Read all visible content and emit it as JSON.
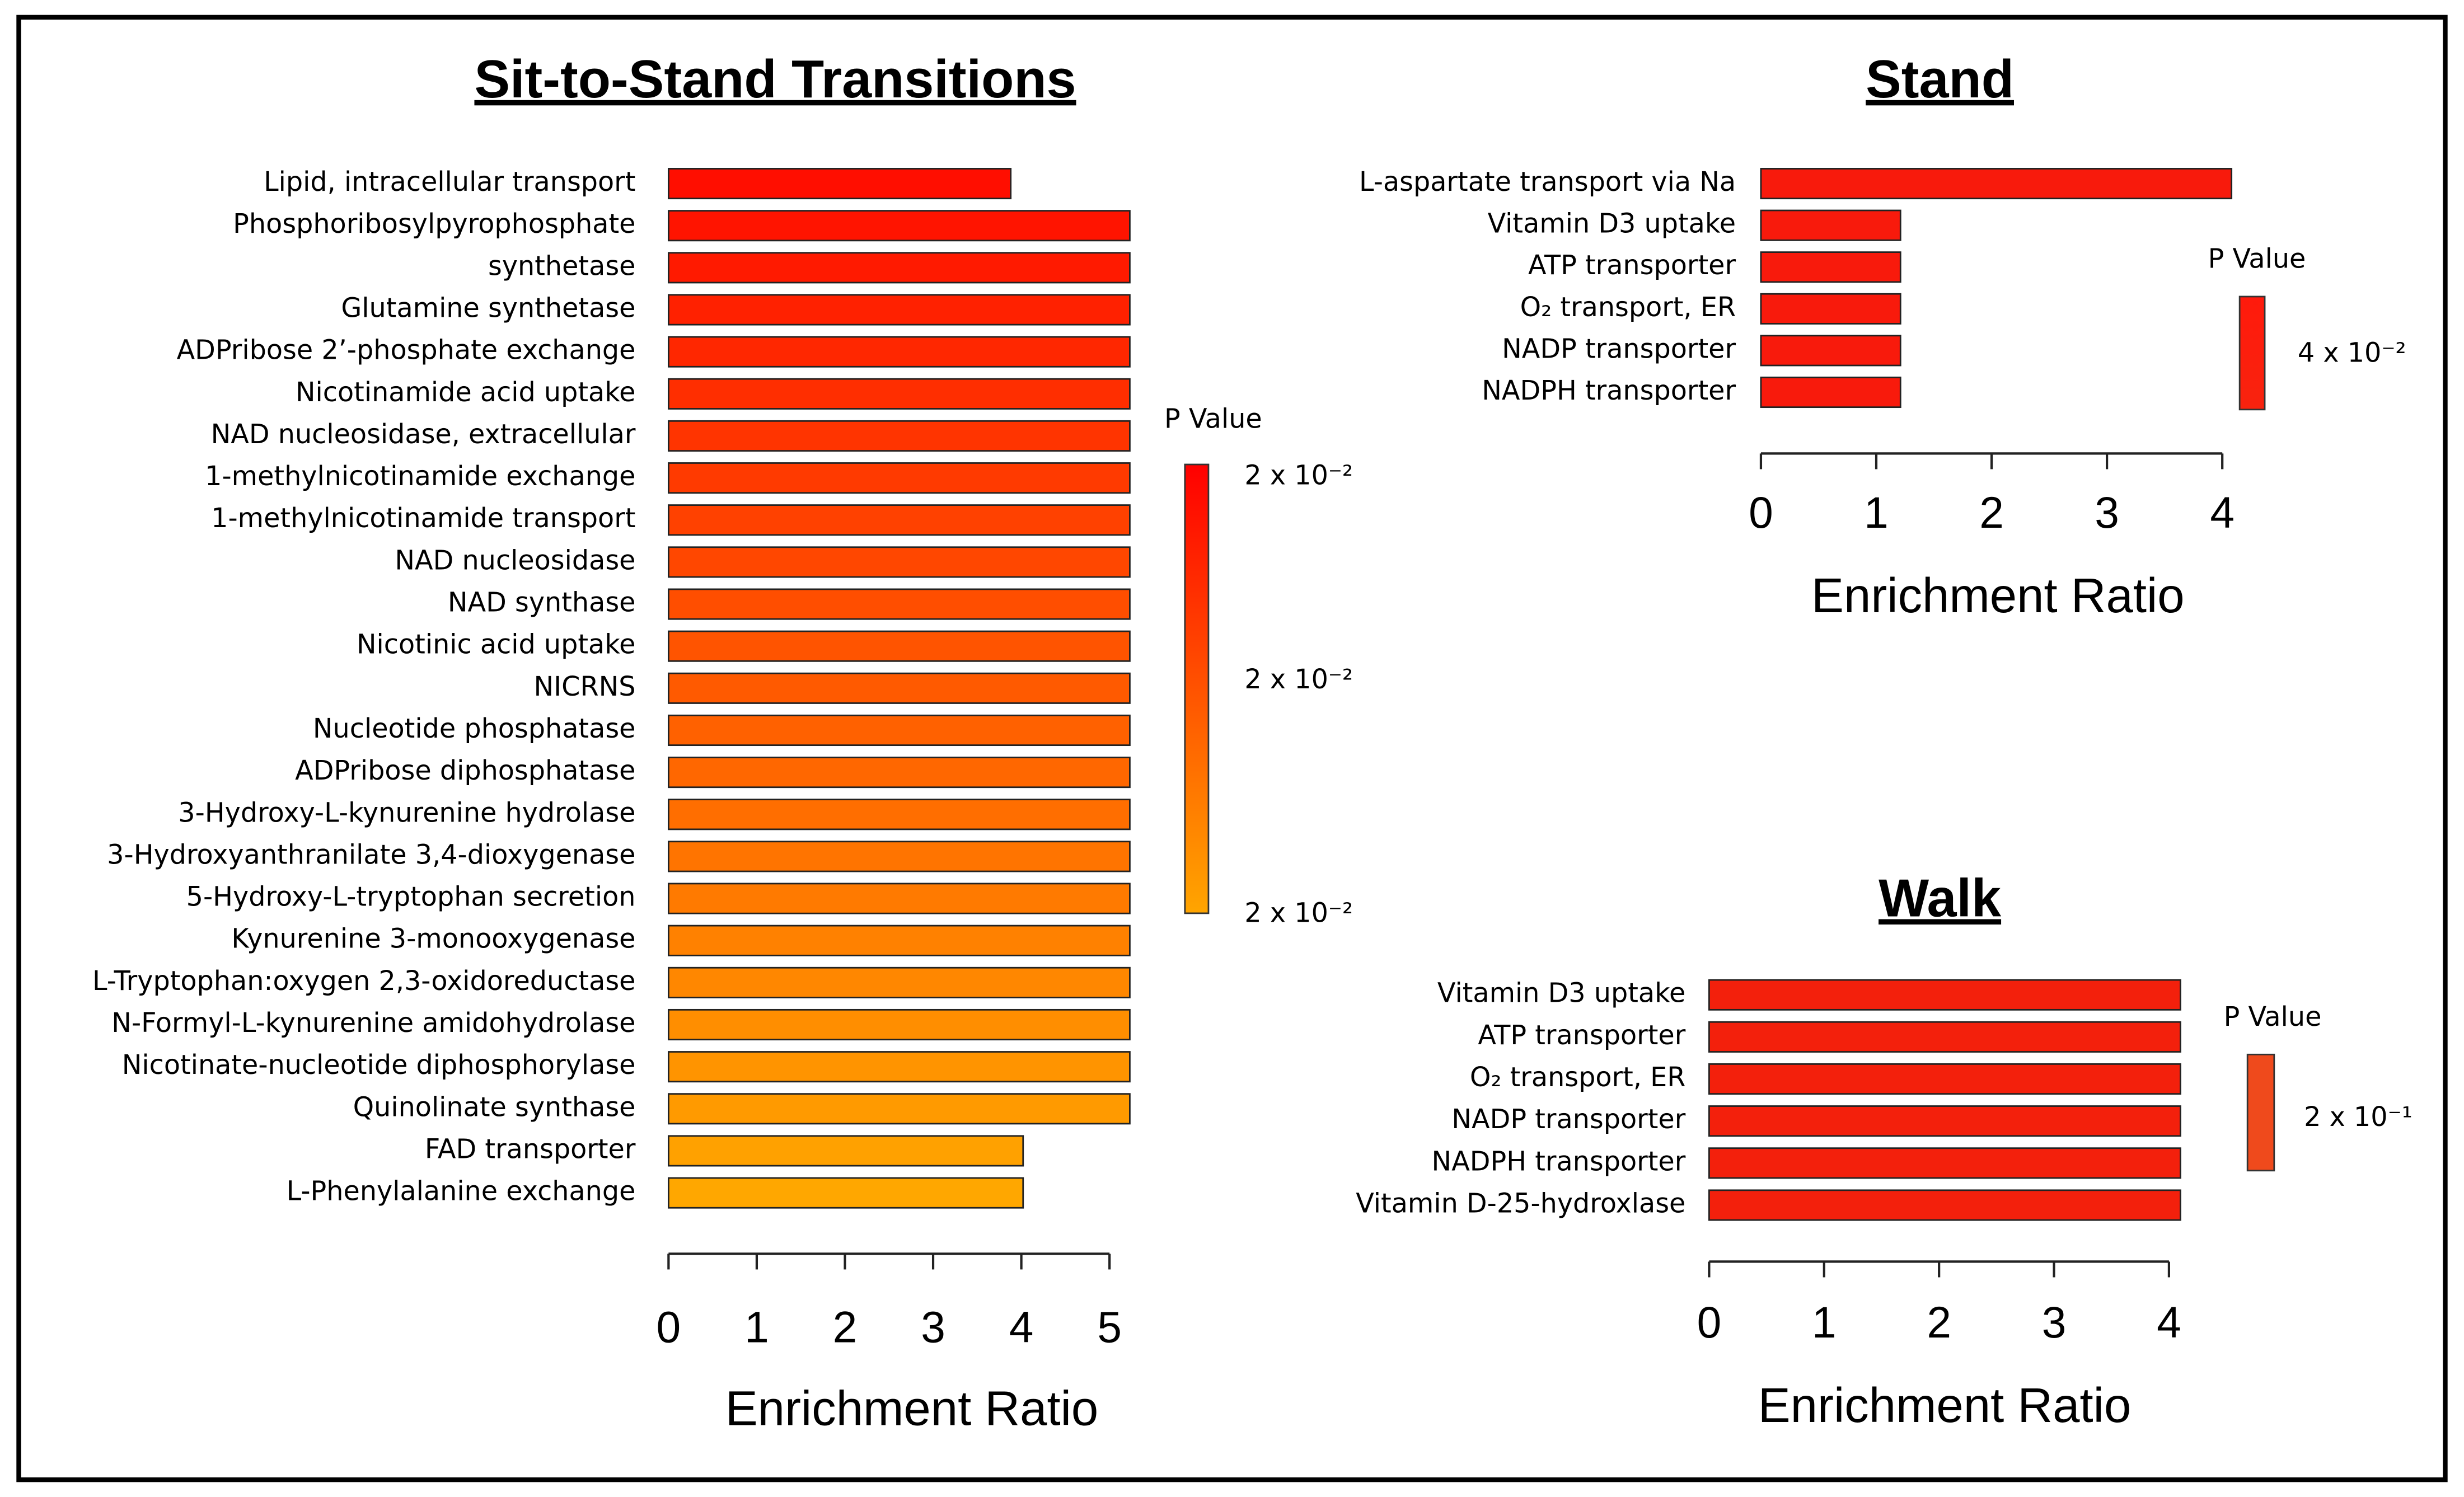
{
  "chart_data": [
    {
      "type": "bar",
      "orientation": "horizontal",
      "title": "Sit-to-Stand Transitions",
      "xlabel": "Enrichment Ratio",
      "categories": [
        "Lipid, intracellular transport",
        "Phosphoribosylpyrophosphate",
        "synthetase",
        "Glutamine synthetase",
        "ADPribose 2’-phosphate exchange",
        "Nicotinamide acid uptake",
        "NAD nucleosidase, extracellular",
        "1-methylnicotinamide exchange",
        "1-methylnicotinamide transport",
        "NAD nucleosidase",
        "NAD synthase",
        "Nicotinic acid uptake",
        "NICRNS",
        "Nucleotide phosphatase",
        "ADPribose diphosphatase",
        "3-Hydroxy-L-kynurenine hydrolase",
        "3-Hydroxyanthranilate 3,4-dioxygenase",
        "5-Hydroxy-L-tryptophan secretion",
        "Kynurenine 3-monooxygenase",
        "L-Tryptophan:oxygen 2,3-oxidoreductase",
        "N-Formyl-L-kynurenine amidohydrolase",
        "Nicotinate-nucleotide diphosphorylase",
        "Quinolinate synthase",
        "FAD transporter",
        "L-Phenylalanine exchange"
      ],
      "values": [
        3.88,
        5.23,
        5.23,
        5.23,
        5.23,
        5.23,
        5.23,
        5.23,
        5.23,
        5.23,
        5.23,
        5.23,
        5.23,
        5.23,
        5.23,
        5.23,
        5.23,
        5.23,
        5.23,
        5.23,
        5.23,
        5.23,
        5.23,
        4.02,
        4.02
      ],
      "colors": [
        "#ff0e00",
        "#ff1400",
        "#ff1a00",
        "#ff2100",
        "#ff2700",
        "#ff2e00",
        "#ff3400",
        "#ff3a00",
        "#ff4100",
        "#ff4700",
        "#ff4e00",
        "#ff5400",
        "#ff5a00",
        "#ff6100",
        "#ff6700",
        "#ff6e00",
        "#ff7400",
        "#ff7a00",
        "#ff8100",
        "#ff8700",
        "#ff8e00",
        "#ff9400",
        "#ff9a00",
        "#ffa100",
        "#ffa700"
      ],
      "xlim": [
        0,
        5.2
      ],
      "xticks": [
        0,
        1,
        2,
        3,
        4,
        5
      ],
      "colorbar": {
        "title": "P Value",
        "colors": [
          "#ff0000",
          "#ffa500"
        ],
        "labels": [
          "2 x 10⁻²",
          "2 x 10⁻²",
          "2 x 10⁻²"
        ]
      }
    },
    {
      "type": "bar",
      "orientation": "horizontal",
      "title": "Stand",
      "xlabel": "Enrichment Ratio",
      "categories": [
        "L-aspartate transport via Na",
        "Vitamin D3 uptake",
        "ATP transporter",
        "O₂ transport, ER",
        "NADP transporter",
        "NADPH transporter"
      ],
      "values": [
        4.08,
        1.21,
        1.21,
        1.21,
        1.21,
        1.21
      ],
      "colors": [
        "#f81a0c",
        "#f81a0c",
        "#f81a0c",
        "#f81a0c",
        "#f81a0c",
        "#f81a0c"
      ],
      "xlim": [
        0,
        4.1
      ],
      "xticks": [
        0,
        1,
        2,
        3,
        4
      ],
      "colorbar": {
        "title": "P Value",
        "colors": [
          "#ff1a0c",
          "#f8230e"
        ],
        "labels": [
          "4 x 10⁻²"
        ]
      }
    },
    {
      "type": "bar",
      "orientation": "horizontal",
      "title": "Walk",
      "xlabel": "Enrichment Ratio",
      "categories": [
        "Vitamin D3 uptake",
        "ATP transporter",
        "O₂ transport, ER",
        "NADP transporter",
        "NADPH transporter",
        "Vitamin D-25-hydroxlase"
      ],
      "values": [
        4.1,
        4.1,
        4.1,
        4.1,
        4.1,
        4.1
      ],
      "colors": [
        "#f3200c",
        "#f3200c",
        "#f3200c",
        "#f3200c",
        "#f3200c",
        "#f3200c"
      ],
      "xlim": [
        0,
        4.1
      ],
      "xticks": [
        0,
        1,
        2,
        3,
        4
      ],
      "colorbar": {
        "title": "P Value",
        "colors": [
          "#ef4a1c",
          "#ef4a1c"
        ],
        "labels": [
          "2 x 10⁻¹"
        ]
      }
    }
  ]
}
